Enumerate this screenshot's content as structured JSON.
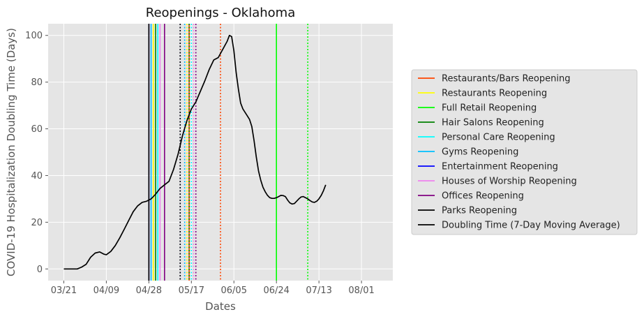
{
  "chart_data": {
    "type": "line",
    "title": "Reopenings - Oklahoma",
    "xlabel": "Dates",
    "ylabel": "COVID-19 Hospitalization Doubling Time (Days)",
    "x_ticks": [
      "03/21",
      "04/09",
      "04/28",
      "05/17",
      "06/05",
      "06/24",
      "07/13",
      "08/01"
    ],
    "x_tick_days": [
      0,
      19,
      38,
      57,
      76,
      95,
      114,
      133
    ],
    "y_ticks": [
      0,
      20,
      40,
      60,
      80,
      100
    ],
    "xlim": [
      -7,
      147
    ],
    "ylim": [
      -5,
      105
    ],
    "grid": true,
    "background": "#e5e5e5",
    "legend_position": "right",
    "series": [
      {
        "name": "Doubling Time (7-Day Moving Average)",
        "color": "#000000",
        "points": [
          [
            0,
            0
          ],
          [
            2,
            0
          ],
          [
            4,
            0
          ],
          [
            6,
            0
          ],
          [
            8,
            0.8
          ],
          [
            10,
            2
          ],
          [
            12,
            5
          ],
          [
            14,
            6.8
          ],
          [
            16,
            7.3
          ],
          [
            18,
            6.3
          ],
          [
            19,
            6.1
          ],
          [
            21,
            7.5
          ],
          [
            23,
            10
          ],
          [
            25,
            13.3
          ],
          [
            27,
            17
          ],
          [
            29,
            20.8
          ],
          [
            31,
            24.5
          ],
          [
            33,
            27
          ],
          [
            35,
            28.5
          ],
          [
            37,
            29
          ],
          [
            39,
            30
          ],
          [
            41,
            32
          ],
          [
            43,
            34.5
          ],
          [
            45,
            36
          ],
          [
            47,
            37.5
          ],
          [
            49,
            42.5
          ],
          [
            51,
            49
          ],
          [
            52,
            53
          ],
          [
            53,
            57
          ],
          [
            55,
            63.5
          ],
          [
            57,
            68.5
          ],
          [
            59,
            71.5
          ],
          [
            61,
            76
          ],
          [
            63,
            80.5
          ],
          [
            65,
            85.5
          ],
          [
            67,
            89.5
          ],
          [
            69,
            90.5
          ],
          [
            71,
            94
          ],
          [
            73,
            97.5
          ],
          [
            74,
            100
          ],
          [
            75,
            99.5
          ],
          [
            76,
            93.5
          ],
          [
            77,
            84
          ],
          [
            78,
            77
          ],
          [
            79,
            71
          ],
          [
            80,
            68.5
          ],
          [
            81,
            67
          ],
          [
            82,
            65.5
          ],
          [
            83,
            64
          ],
          [
            84,
            61
          ],
          [
            85,
            55
          ],
          [
            86,
            48
          ],
          [
            87,
            42
          ],
          [
            88,
            38
          ],
          [
            89,
            35
          ],
          [
            90,
            33
          ],
          [
            91,
            31.5
          ],
          [
            92,
            30.5
          ],
          [
            93,
            30.2
          ],
          [
            94,
            30.2
          ],
          [
            95,
            30.5
          ],
          [
            96,
            31
          ],
          [
            97,
            31.5
          ],
          [
            98,
            31.4
          ],
          [
            99,
            31
          ],
          [
            100,
            29.5
          ],
          [
            101,
            28.3
          ],
          [
            102,
            27.8
          ],
          [
            103,
            28
          ],
          [
            104,
            29
          ],
          [
            105,
            30
          ],
          [
            106,
            30.8
          ],
          [
            107,
            31
          ],
          [
            108,
            30.5
          ],
          [
            109,
            30
          ],
          [
            110,
            29.3
          ],
          [
            111,
            28.7
          ],
          [
            112,
            28.5
          ],
          [
            113,
            29
          ],
          [
            114,
            30
          ],
          [
            115,
            31.5
          ],
          [
            116,
            33.5
          ],
          [
            117,
            36
          ]
        ]
      }
    ],
    "reopenings": [
      {
        "name": "Restaurants/Bars Reopening",
        "color": "#ff4500",
        "solid_day": 56,
        "dotted_day": 70
      },
      {
        "name": "Restaurants Reopening",
        "color": "#ffff00",
        "solid_day": 40,
        "dotted_day": 55
      },
      {
        "name": "Full Retail Reopening",
        "color": "#00ff00",
        "solid_day": 95,
        "dotted_day": 109
      },
      {
        "name": "Hair Salons Reopening",
        "color": "#008000",
        "solid_day": 41,
        "dotted_day": 56
      },
      {
        "name": "Personal Care Reopening",
        "color": "#00ffff",
        "solid_day": 42,
        "dotted_day": 57
      },
      {
        "name": "Gyms Reopening",
        "color": "#00bfff",
        "solid_day": 39,
        "dotted_day": 54
      },
      {
        "name": "Entertainment Reopening",
        "color": "#0000ff",
        "solid_day": 38,
        "dotted_day": 52
      },
      {
        "name": "Houses of Worship Reopening",
        "color": "#ee82ee",
        "solid_day": 43,
        "dotted_day": 58
      },
      {
        "name": "Offices Reopening",
        "color": "#800080",
        "solid_day": 45,
        "dotted_day": 59
      },
      {
        "name": "Parks Reopening",
        "color": "#000000",
        "solid_day": 38,
        "dotted_day": 52
      }
    ],
    "legend": [
      {
        "label": "Restaurants/Bars Reopening",
        "color": "#ff4500"
      },
      {
        "label": "Restaurants Reopening",
        "color": "#ffff00"
      },
      {
        "label": "Full Retail Reopening",
        "color": "#00ff00"
      },
      {
        "label": "Hair Salons Reopening",
        "color": "#008000"
      },
      {
        "label": "Personal Care Reopening",
        "color": "#00ffff"
      },
      {
        "label": "Gyms Reopening",
        "color": "#00bfff"
      },
      {
        "label": "Entertainment Reopening",
        "color": "#0000ff"
      },
      {
        "label": "Houses of Worship Reopening",
        "color": "#ee82ee"
      },
      {
        "label": "Offices Reopening",
        "color": "#800080"
      },
      {
        "label": "Parks Reopening",
        "color": "#000000"
      },
      {
        "label": "Doubling Time (7-Day Moving Average)",
        "color": "#000000"
      }
    ]
  }
}
